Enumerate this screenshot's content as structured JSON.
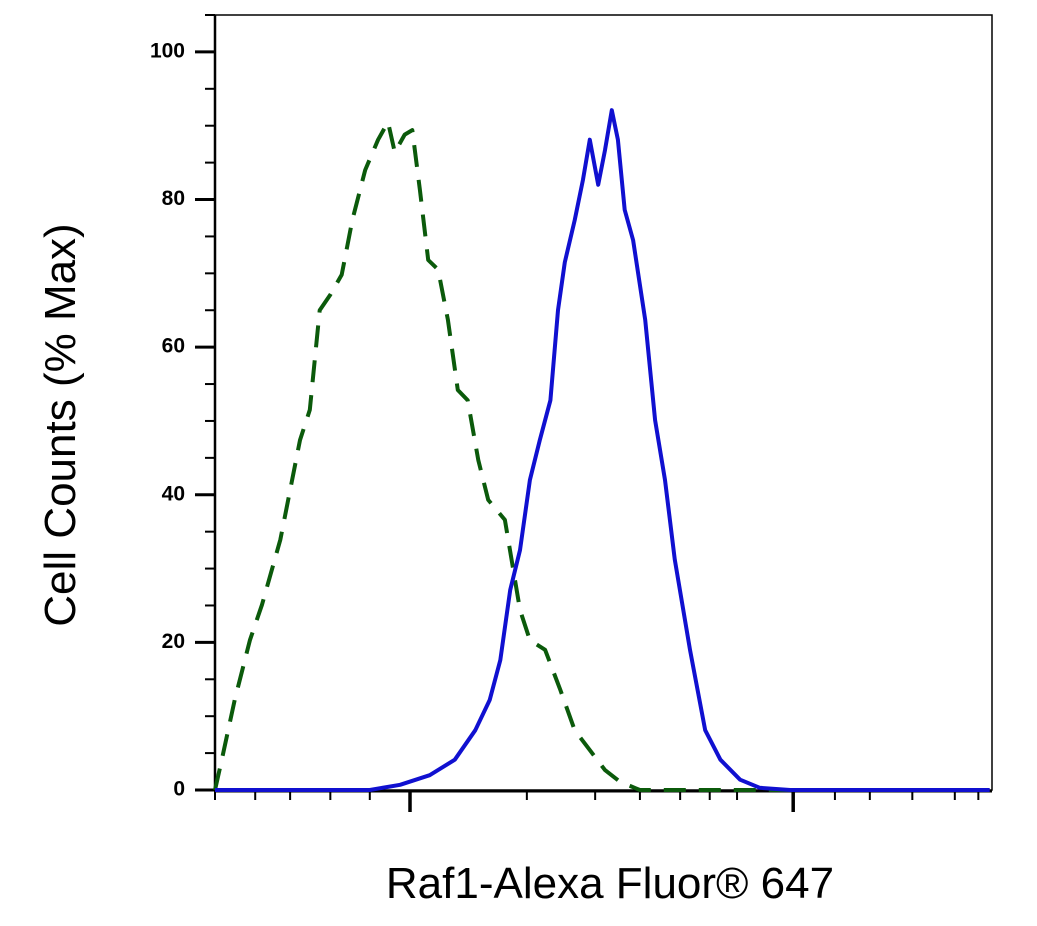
{
  "chart_data": {
    "type": "line",
    "xlabel": "Raf1-Alexa Fluor® 647",
    "ylabel": "Cell Counts (% Max)",
    "xlim": [
      0,
      1024
    ],
    "ylim": [
      0,
      105
    ],
    "yticks": [
      0,
      20,
      40,
      60,
      80,
      100
    ],
    "y_minor_ticks": [
      5,
      10,
      15,
      25,
      30,
      35,
      45,
      50,
      55,
      65,
      70,
      75,
      85,
      90,
      95,
      105
    ],
    "xticks": [
      257,
      762
    ],
    "x_minor_ticks": [
      0,
      53,
      99,
      152,
      204,
      411,
      501,
      560,
      613,
      652,
      688,
      817,
      863,
      919,
      975,
      1006
    ],
    "grid": false,
    "series": [
      {
        "color": "#0b5a0b",
        "dashed": true,
        "x": [
          0,
          9,
          26,
          46,
          62,
          86,
          112,
          125,
          138,
          152,
          167,
          181,
          198,
          215,
          228,
          237,
          250,
          260,
          270,
          281,
          294,
          307,
          320,
          333,
          347,
          360,
          382,
          402,
          415,
          435,
          455,
          474,
          494,
          514,
          534,
          560,
          639,
          758
        ],
        "values": [
          0,
          4.1,
          12.2,
          20.3,
          25.1,
          33.9,
          47.4,
          51.5,
          65.0,
          67.1,
          69.8,
          77.2,
          84.0,
          88.1,
          90.5,
          86.4,
          88.8,
          89.4,
          81.3,
          71.8,
          70.5,
          63.7,
          54.2,
          52.8,
          44.7,
          39.3,
          36.6,
          24.4,
          20.3,
          19.0,
          13.6,
          8.1,
          5.4,
          2.7,
          1.1,
          0,
          0,
          0
        ]
      },
      {
        "color": "#1010d0",
        "dashed": false,
        "x": [
          0,
          204,
          244,
          283,
          316,
          343,
          362,
          376,
          389,
          402,
          415,
          428,
          442,
          452,
          461,
          474,
          485,
          494,
          505,
          514,
          523,
          531,
          540,
          551,
          567,
          580,
          593,
          606,
          626,
          646,
          666,
          692,
          718,
          758,
          1021
        ],
        "values": [
          0,
          0,
          0.7,
          2.0,
          4.1,
          8.1,
          12.2,
          17.6,
          27.1,
          32.5,
          42.0,
          47.4,
          52.8,
          65.0,
          71.5,
          77.2,
          82.7,
          88.1,
          82.0,
          86.7,
          92.1,
          88.1,
          78.6,
          74.5,
          63.7,
          50.1,
          42.0,
          31.2,
          19.0,
          8.1,
          4.1,
          1.4,
          0.3,
          0,
          0
        ]
      }
    ]
  }
}
